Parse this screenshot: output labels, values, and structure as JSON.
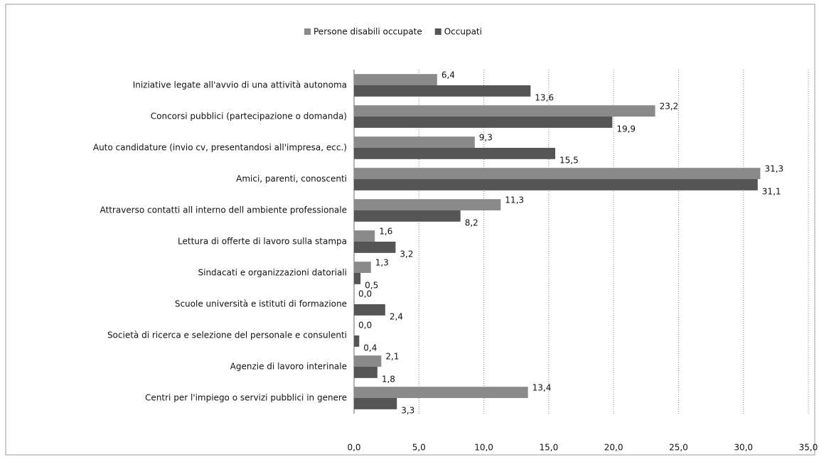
{
  "chart_data": {
    "type": "bar",
    "orientation": "horizontal",
    "categories": [
      "Iniziative legate all'avvio di una attività autonoma",
      "Concorsi pubblici (partecipazione o domanda)",
      "Auto candidature (invio cv, presentandosi all'impresa, ecc.)",
      "Amici, parenti, conoscenti",
      "Attraverso contatti all interno dell ambiente professionale",
      "Lettura di offerte di lavoro sulla stampa",
      "Sindacati e organizzazioni datoriali",
      "Scuole università e istituti di formazione",
      "Società di ricerca e selezione del personale e consulenti",
      "Agenzie di lavoro interinale",
      "Centri per l'impiego o servizi pubblici in genere"
    ],
    "series": [
      {
        "name": "Persone disabili occupate",
        "color": "#8a8a8a",
        "values": [
          6.4,
          23.2,
          9.3,
          31.3,
          11.3,
          1.6,
          1.3,
          0.0,
          0.0,
          2.1,
          13.4
        ],
        "value_labels": [
          "6,4",
          "23,2",
          "9,3",
          "31,3",
          "11,3",
          "1,6",
          "1,3",
          "0,0",
          "0,0",
          "2,1",
          "13,4"
        ]
      },
      {
        "name": "Occupati",
        "color": "#555555",
        "values": [
          13.6,
          19.9,
          15.5,
          31.1,
          8.2,
          3.2,
          0.5,
          2.4,
          0.4,
          1.8,
          3.3
        ],
        "value_labels": [
          "13,6",
          "19,9",
          "15,5",
          "31,1",
          "8,2",
          "3,2",
          "0,5",
          "2,4",
          "0,4",
          "1,8",
          "3,3"
        ]
      }
    ],
    "xlim": [
      0,
      35
    ],
    "xticks": [
      {
        "value": 0,
        "label": "0,0"
      },
      {
        "value": 5,
        "label": "5,0"
      },
      {
        "value": 10,
        "label": "10,0"
      },
      {
        "value": 15,
        "label": "15,0"
      },
      {
        "value": 20,
        "label": "20,0"
      },
      {
        "value": 25,
        "label": "25,0"
      },
      {
        "value": 30,
        "label": "30,0"
      },
      {
        "value": 35,
        "label": "35,0"
      }
    ],
    "grid": true,
    "legend": "top"
  }
}
